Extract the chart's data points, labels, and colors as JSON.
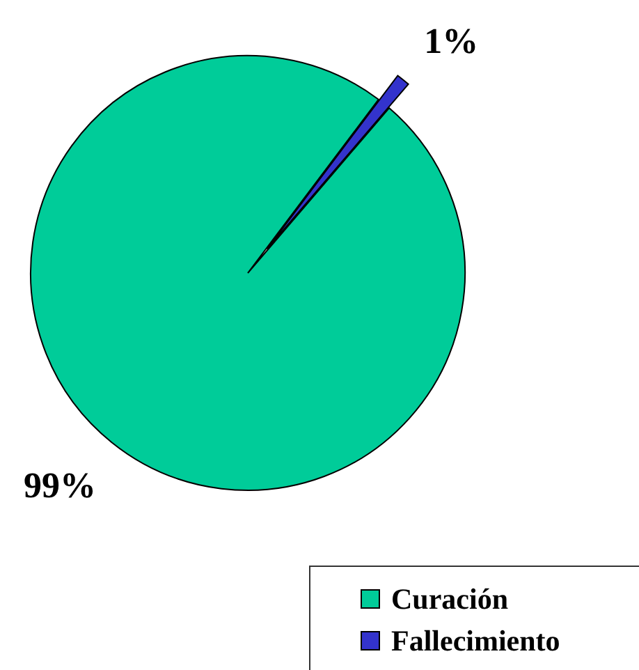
{
  "chart_data": {
    "type": "pie",
    "categories": [
      "Curación",
      "Fallecimiento"
    ],
    "values": [
      99,
      1
    ],
    "colors": [
      "#00cc99",
      "#3333cc"
    ],
    "value_labels": [
      "99%",
      "1%"
    ],
    "legend": "bottom right"
  }
}
